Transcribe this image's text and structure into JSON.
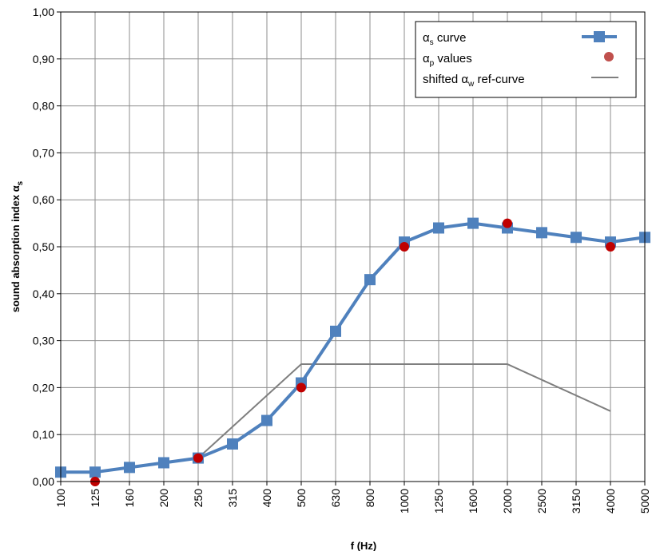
{
  "chart_data": {
    "type": "line",
    "x_categories": [
      "100",
      "125",
      "160",
      "200",
      "250",
      "315",
      "400",
      "500",
      "630",
      "800",
      "1000",
      "1250",
      "1600",
      "2000",
      "2500",
      "3150",
      "4000",
      "5000"
    ],
    "y_tick_labels": [
      "0,00",
      "0,10",
      "0,20",
      "0,30",
      "0,40",
      "0,50",
      "0,60",
      "0,70",
      "0,80",
      "0,90",
      "1,00"
    ],
    "ylim": [
      0,
      1.0
    ],
    "xlabel": "f (Hz)",
    "ylabel": {
      "main": "sound absorption index α",
      "sub": "s"
    },
    "grid": true,
    "legend_position": "top-right",
    "series": [
      {
        "name": {
          "pre": "α",
          "sub": "s",
          "post": " curve"
        },
        "kind": "line-marker",
        "color": "#4f81bd",
        "values": [
          0.02,
          0.02,
          0.03,
          0.04,
          0.05,
          0.08,
          0.13,
          0.21,
          0.32,
          0.43,
          0.51,
          0.54,
          0.55,
          0.54,
          0.53,
          0.52,
          0.51,
          0.52
        ]
      },
      {
        "name": {
          "pre": "α",
          "sub": "p",
          "post": " values"
        },
        "kind": "scatter",
        "color": "#c00000",
        "points": [
          {
            "x": "125",
            "y": 0.0
          },
          {
            "x": "250",
            "y": 0.05
          },
          {
            "x": "500",
            "y": 0.2
          },
          {
            "x": "1000",
            "y": 0.5
          },
          {
            "x": "2000",
            "y": 0.55
          },
          {
            "x": "4000",
            "y": 0.5
          }
        ]
      },
      {
        "name": {
          "pre": "shifted α",
          "sub": "w",
          "post": " ref-curve"
        },
        "kind": "line",
        "color": "#7f7f7f",
        "points": [
          {
            "x": "250",
            "y": 0.05
          },
          {
            "x": "500",
            "y": 0.25
          },
          {
            "x": "1000",
            "y": 0.25
          },
          {
            "x": "2000",
            "y": 0.25
          },
          {
            "x": "4000",
            "y": 0.15
          }
        ]
      }
    ]
  }
}
